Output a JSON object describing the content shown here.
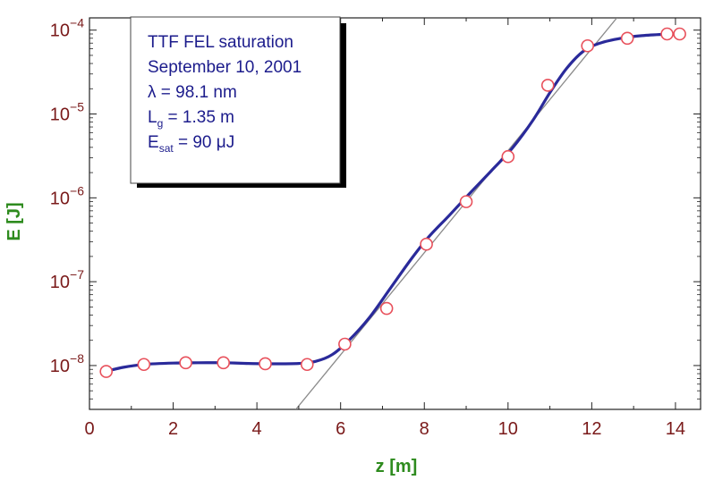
{
  "chart_data": {
    "type": "scatter",
    "title": "",
    "xlabel": "z  [m]",
    "ylabel": "E  [J]",
    "xlim": [
      0,
      14.6
    ],
    "ylim": [
      3e-09,
      0.00014
    ],
    "yscale": "log",
    "grid": false,
    "x_ticks": [
      0,
      2,
      4,
      6,
      8,
      10,
      12,
      14
    ],
    "x_tick_labels": [
      "0",
      "2",
      "4",
      "6",
      "8",
      "10",
      "12",
      "14"
    ],
    "y_ticks": [
      1e-08,
      1e-07,
      1e-06,
      1e-05,
      0.0001
    ],
    "y_tick_labels": [
      {
        "base": "10",
        "exp": "−8"
      },
      {
        "base": "10",
        "exp": "−7"
      },
      {
        "base": "10",
        "exp": "−6"
      },
      {
        "base": "10",
        "exp": "−5"
      },
      {
        "base": "10",
        "exp": "−4"
      }
    ],
    "series": [
      {
        "type": "scatter",
        "marker": "open-circle",
        "color": "#e8505b",
        "x": [
          0.4,
          1.3,
          2.3,
          3.2,
          4.2,
          5.2,
          6.1,
          7.1,
          8.05,
          9.0,
          10.0,
          10.95,
          11.9,
          12.85,
          13.8,
          14.1
        ],
        "y": [
          8.5e-09,
          1.03e-08,
          1.08e-08,
          1.08e-08,
          1.05e-08,
          1.03e-08,
          1.8e-08,
          4.8e-08,
          2.8e-07,
          9e-07,
          3.1e-06,
          2.2e-05,
          6.5e-05,
          8e-05,
          9e-05,
          9e-05
        ]
      },
      {
        "type": "line",
        "style": "smooth-fit",
        "color": "#2a2a9a",
        "x": [
          0.3,
          0.8,
          1.3,
          2.0,
          2.6,
          3.2,
          3.8,
          4.4,
          5.0,
          5.4,
          5.8,
          6.2,
          6.7,
          7.2,
          7.7,
          8.1,
          8.6,
          9.1,
          9.6,
          10.1,
          10.6,
          11.0,
          11.4,
          11.8,
          12.2,
          12.7,
          13.2,
          13.7,
          14.2
        ],
        "y": [
          8.3e-09,
          9.5e-09,
          1.03e-08,
          1.07e-08,
          1.08e-08,
          1.08e-08,
          1.06e-08,
          1.05e-08,
          1.06e-08,
          1.12e-08,
          1.35e-08,
          2e-08,
          3.8e-08,
          8.5e-08,
          1.9e-07,
          3.4e-07,
          6.2e-07,
          1.15e-06,
          2.1e-06,
          3.9e-06,
          8.5e-06,
          1.8e-05,
          3.5e-05,
          5.6e-05,
          7e-05,
          8e-05,
          8.6e-05,
          8.9e-05,
          9e-05
        ]
      },
      {
        "type": "line",
        "style": "exponential-fit",
        "color": "#8a8a8a",
        "x": [
          4.93,
          12.6
        ],
        "y": [
          3e-09,
          0.00014
        ]
      }
    ]
  },
  "legend": {
    "line1": "TTF FEL saturation",
    "line2": "September 10, 2001",
    "lambda_label": "λ = 98.1 nm",
    "lg_main": "L",
    "lg_sub": "g",
    "lg_value": " = 1.35 m",
    "esat_main": "E",
    "esat_sub": "sat",
    "esat_value": " = 90 μJ"
  }
}
